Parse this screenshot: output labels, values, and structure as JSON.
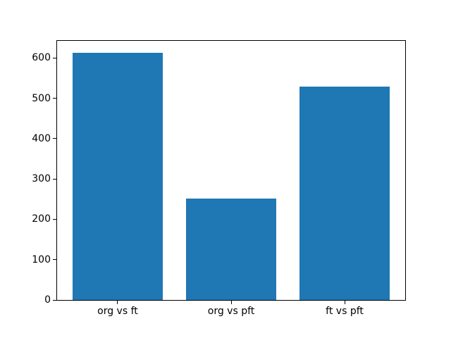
{
  "figure": {
    "background": "#ffffff",
    "axes_background": "#ffffff",
    "spine_color": "#000000",
    "tick_color": "#000000",
    "tick_label_color": "#000000"
  },
  "chart_data": {
    "type": "bar",
    "title": "",
    "xlabel": "",
    "ylabel": "",
    "categories": [
      "org vs ft",
      "org vs pft",
      "ft vs pft"
    ],
    "values": [
      613,
      251,
      529
    ],
    "bar_color": "#1f77b4",
    "ylim": [
      0,
      644
    ],
    "yticks": [
      0,
      100,
      200,
      300,
      400,
      500,
      600
    ],
    "grid": false,
    "legend_position": "none"
  }
}
